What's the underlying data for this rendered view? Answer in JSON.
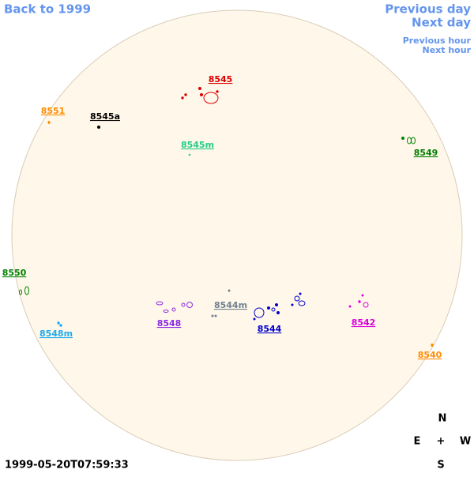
{
  "navigation": {
    "back": "Back to 1999",
    "previous_day": "Previous day",
    "next_day": "Next day",
    "previous_hour": "Previous hour",
    "next_hour": "Next hour"
  },
  "regions": [
    {
      "label": "8545",
      "color": "#dd0000"
    },
    {
      "label": "8551",
      "color": "#ff8c00"
    },
    {
      "label": "8545a",
      "color": "#000000"
    },
    {
      "label": "8545m",
      "color": "#22cc88"
    },
    {
      "label": "8549",
      "color": "#008000"
    },
    {
      "label": "8550",
      "color": "#008000"
    },
    {
      "label": "8548",
      "color": "#8a2be2"
    },
    {
      "label": "8544m",
      "color": "#708090"
    },
    {
      "label": "8544",
      "color": "#0000cc"
    },
    {
      "label": "8542",
      "color": "#dd00dd"
    },
    {
      "label": "8548m",
      "color": "#1eaaee"
    },
    {
      "label": "8540",
      "color": "#ff8c00"
    }
  ],
  "compass": {
    "north": "N",
    "east": "E",
    "center": "+",
    "west": "W",
    "south": "S"
  },
  "timestamp": "1999-05-20T07:59:33"
}
